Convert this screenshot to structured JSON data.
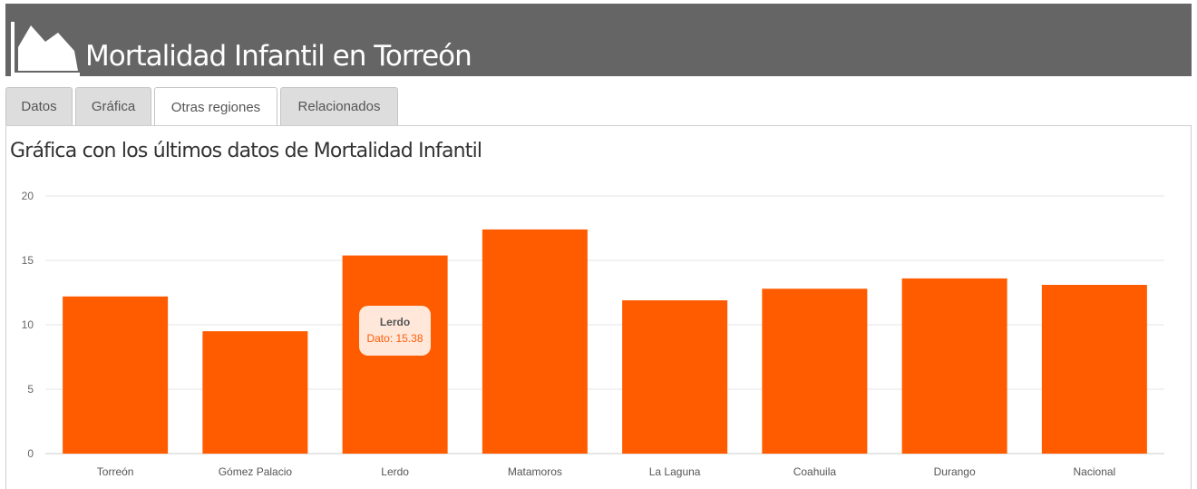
{
  "header": {
    "title": "Mortalidad Infantil en Torreón",
    "logo_icon": "area-chart-icon"
  },
  "tabs": [
    {
      "label": "Datos",
      "active": false
    },
    {
      "label": "Gráfica",
      "active": false
    },
    {
      "label": "Otras regiones",
      "active": true
    },
    {
      "label": "Relacionados",
      "active": false
    }
  ],
  "panel": {
    "subtitle": "Gráfica con los últimos datos de Mortalidad Infantil"
  },
  "tooltip": {
    "name": "Lerdo",
    "value_text": "Dato: 15.38"
  },
  "colors": {
    "bar": "#ff5c00",
    "header_bg": "#656565",
    "grid": "#e6e6e6"
  },
  "chart_data": {
    "type": "bar",
    "categories": [
      "Torreón",
      "Gómez Palacio",
      "Lerdo",
      "Matamoros",
      "La Laguna",
      "Coahuila",
      "Durango",
      "Nacional"
    ],
    "values": [
      12.2,
      9.5,
      15.38,
      17.4,
      11.9,
      12.8,
      13.6,
      13.1
    ],
    "ylim": [
      0,
      20
    ],
    "yticks": [
      0,
      5,
      10,
      15,
      20
    ],
    "title": "",
    "xlabel": "",
    "ylabel": "",
    "grid": true,
    "legend": "none"
  }
}
